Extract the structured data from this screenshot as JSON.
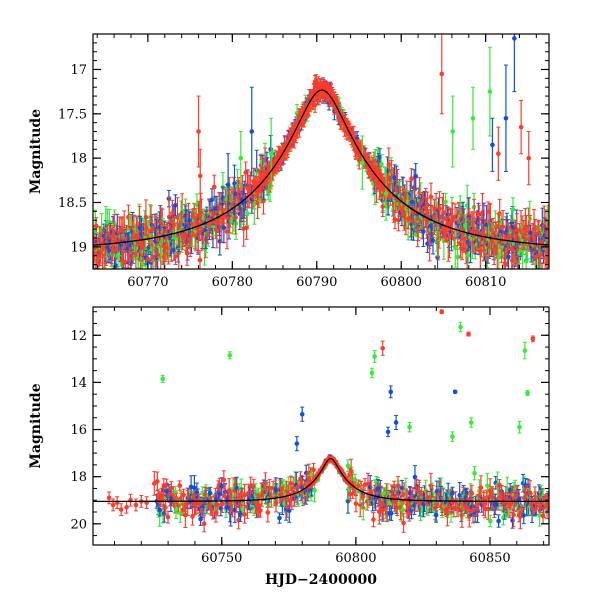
{
  "figure": {
    "xlabel": "HJD−2400000",
    "colors": {
      "green": "#33ee33",
      "blue": "#1050e0",
      "red": "#ff3b2a",
      "model": "#000000"
    }
  },
  "chart_data": [
    {
      "type": "scatter",
      "name": "zoom",
      "ylabel": "Magnitude",
      "xlim": [
        60763.5,
        60817.5
      ],
      "ylim": [
        19.25,
        16.6
      ],
      "y_inverted": true,
      "xticks": [
        60770,
        60780,
        60790,
        60800,
        60810
      ],
      "yticks": [
        17,
        17.5,
        18,
        18.5,
        19
      ],
      "model": {
        "t0": 60790.6,
        "u0": 0.19,
        "tE": 14.0,
        "base_mag": 19.05
      },
      "outliers": [
        {
          "band": "red",
          "x": 60776.0,
          "y": 17.7,
          "err": 0.4
        },
        {
          "band": "red",
          "x": 60776.2,
          "y": 18.2,
          "err": 0.3
        },
        {
          "band": "blue",
          "x": 60779.5,
          "y": 18.3,
          "err": 0.35
        },
        {
          "band": "green",
          "x": 60781.0,
          "y": 18.0,
          "err": 0.3
        },
        {
          "band": "blue",
          "x": 60782.3,
          "y": 17.7,
          "err": 0.5
        },
        {
          "band": "green",
          "x": 60784.6,
          "y": 17.95,
          "err": 0.4
        },
        {
          "band": "green",
          "x": 60795.4,
          "y": 18.05,
          "err": 0.3
        },
        {
          "band": "green",
          "x": 60798.2,
          "y": 18.4,
          "err": 0.3
        },
        {
          "band": "red",
          "x": 60804.8,
          "y": 17.05,
          "err": 0.45
        },
        {
          "band": "green",
          "x": 60806.1,
          "y": 17.7,
          "err": 0.4
        },
        {
          "band": "green",
          "x": 60808.5,
          "y": 17.55,
          "err": 0.35
        },
        {
          "band": "green",
          "x": 60810.5,
          "y": 17.25,
          "err": 0.5
        },
        {
          "band": "blue",
          "x": 60810.8,
          "y": 17.85,
          "err": 0.3
        },
        {
          "band": "red",
          "x": 60811.5,
          "y": 17.95,
          "err": 0.3
        },
        {
          "band": "blue",
          "x": 60812.4,
          "y": 17.55,
          "err": 0.6
        },
        {
          "band": "blue",
          "x": 60813.4,
          "y": 16.65,
          "err": 0.6
        },
        {
          "band": "red",
          "x": 60814.2,
          "y": 17.65,
          "err": 0.3
        },
        {
          "band": "red",
          "x": 60815.1,
          "y": 18.0,
          "err": 0.3
        }
      ]
    },
    {
      "type": "scatter",
      "name": "full",
      "ylabel": "Magnitude",
      "xlim": [
        60702,
        60872
      ],
      "ylim": [
        20.9,
        10.8
      ],
      "y_inverted": true,
      "xticks": [
        60750,
        60800,
        60850
      ],
      "yticks": [
        12,
        14,
        16,
        18,
        20
      ],
      "model": {
        "t0": 60790.6,
        "u0": 0.19,
        "tE": 14.0,
        "base_mag": 19.05
      },
      "outliers": [
        {
          "band": "green",
          "x": 60728.0,
          "y": 13.85,
          "err": 0.15
        },
        {
          "band": "green",
          "x": 60753.0,
          "y": 12.85,
          "err": 0.15
        },
        {
          "band": "blue",
          "x": 60780.0,
          "y": 15.35,
          "err": 0.3
        },
        {
          "band": "blue",
          "x": 60778.0,
          "y": 16.6,
          "err": 0.3
        },
        {
          "band": "green",
          "x": 60807.0,
          "y": 12.9,
          "err": 0.25
        },
        {
          "band": "red",
          "x": 60810.0,
          "y": 12.55,
          "err": 0.3
        },
        {
          "band": "green",
          "x": 60806.0,
          "y": 13.6,
          "err": 0.2
        },
        {
          "band": "blue",
          "x": 60813.0,
          "y": 14.4,
          "err": 0.25
        },
        {
          "band": "blue",
          "x": 60815.0,
          "y": 15.7,
          "err": 0.3
        },
        {
          "band": "blue",
          "x": 60812.0,
          "y": 16.1,
          "err": 0.2
        },
        {
          "band": "green",
          "x": 60820.0,
          "y": 15.9,
          "err": 0.2
        },
        {
          "band": "red",
          "x": 60832.0,
          "y": 11.0,
          "err": 0.08
        },
        {
          "band": "blue",
          "x": 60837.0,
          "y": 14.4,
          "err": 0.05
        },
        {
          "band": "green",
          "x": 60839.0,
          "y": 11.65,
          "err": 0.2
        },
        {
          "band": "red",
          "x": 60842.0,
          "y": 11.95,
          "err": 0.08
        },
        {
          "band": "green",
          "x": 60843.0,
          "y": 15.7,
          "err": 0.2
        },
        {
          "band": "green",
          "x": 60836.0,
          "y": 16.3,
          "err": 0.2
        },
        {
          "band": "green",
          "x": 60861.0,
          "y": 15.9,
          "err": 0.25
        },
        {
          "band": "green",
          "x": 60863.0,
          "y": 12.65,
          "err": 0.35
        },
        {
          "band": "red",
          "x": 60866.0,
          "y": 12.15,
          "err": 0.12
        },
        {
          "band": "green",
          "x": 60864.0,
          "y": 14.45,
          "err": 0.1
        }
      ],
      "early_red": [
        {
          "x": 60708.0,
          "y": 18.9
        },
        {
          "x": 60709.5,
          "y": 19.2
        },
        {
          "x": 60711.0,
          "y": 19.1
        },
        {
          "x": 60712.5,
          "y": 19.4
        },
        {
          "x": 60714.5,
          "y": 19.3
        },
        {
          "x": 60716.0,
          "y": 19.0
        },
        {
          "x": 60718.0,
          "y": 19.2
        },
        {
          "x": 60720.0,
          "y": 19.05
        },
        {
          "x": 60722.0,
          "y": 19.1
        }
      ]
    }
  ]
}
